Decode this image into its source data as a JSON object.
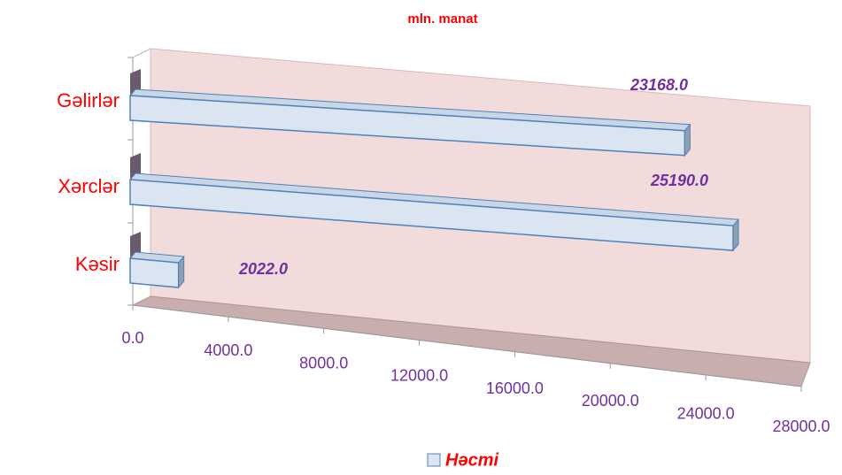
{
  "chart_data": {
    "type": "bar3d",
    "title": "mln. manat",
    "categories": [
      "Gəlirlər",
      "Xərclər",
      "Kəsir"
    ],
    "series": [
      {
        "name": "Həcmi",
        "color": "#dbe5f1",
        "values": [
          23168.0,
          25190.0,
          2022.0
        ],
        "value_labels": [
          "23168.0",
          "25190.0",
          "2022.0"
        ]
      }
    ],
    "xlim": [
      0,
      28000
    ],
    "xticks": [
      {
        "value": 0,
        "label": "0.0"
      },
      {
        "value": 4000,
        "label": "4000.0"
      },
      {
        "value": 8000,
        "label": "8000.0"
      },
      {
        "value": 12000,
        "label": "12000.0"
      },
      {
        "value": 16000,
        "label": "16000.0"
      },
      {
        "value": 20000,
        "label": "20000.0"
      },
      {
        "value": 24000,
        "label": "24000.0"
      },
      {
        "value": 28000,
        "label": "28000.0"
      }
    ],
    "legend": "bottom"
  }
}
